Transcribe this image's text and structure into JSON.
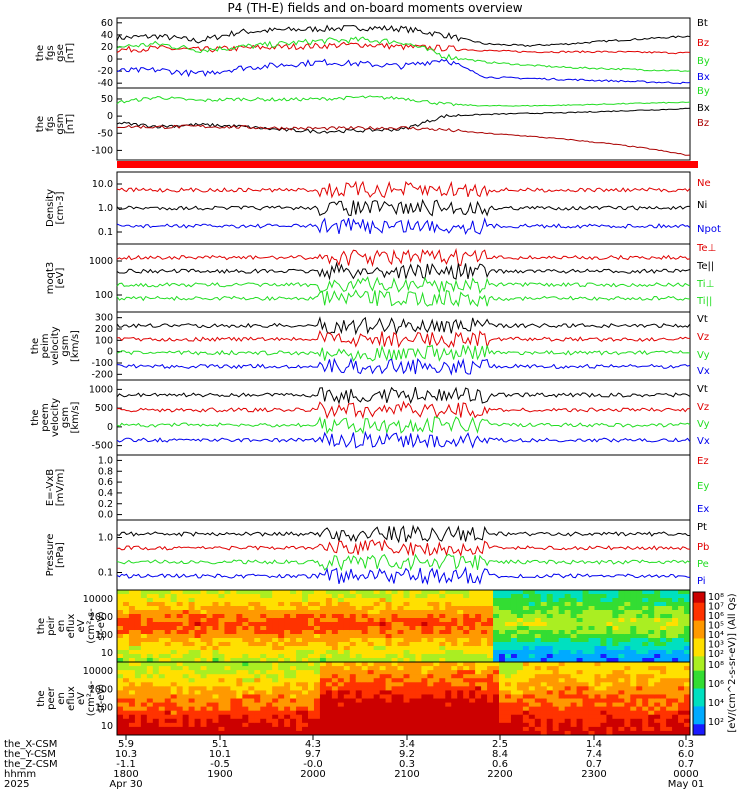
{
  "title": "P4 (TH-E) fields and on-board moments overview",
  "colors": {
    "black": "#000000",
    "red": "#e00000",
    "green": "#22dd22",
    "blue": "#0000ee",
    "darkred": "#aa0000"
  },
  "chart_data": [
    {
      "type": "line",
      "ylabel": [
        "the",
        "fgs",
        "gse",
        "[nT]"
      ],
      "yticks": [
        60,
        40,
        20,
        0,
        -20,
        -40
      ],
      "ylim": [
        -48,
        68
      ],
      "series": [
        {
          "name": "Bt",
          "color": "#000000",
          "values": [
            35,
            38,
            30,
            45,
            48,
            50,
            52,
            50,
            40,
            25,
            22,
            25,
            30,
            34,
            38
          ]
        },
        {
          "name": "Bz",
          "color": "#e00000",
          "values": [
            15,
            18,
            15,
            18,
            20,
            22,
            24,
            20,
            18,
            14,
            12,
            12,
            12,
            11,
            10
          ]
        },
        {
          "name": "By",
          "color": "#22dd22",
          "values": [
            20,
            25,
            15,
            20,
            25,
            30,
            32,
            28,
            5,
            -5,
            -10,
            -14,
            -16,
            -18,
            -20
          ]
        },
        {
          "name": "Bx",
          "color": "#0000ee",
          "values": [
            -20,
            -18,
            -25,
            -15,
            -10,
            -5,
            -8,
            -12,
            0,
            -30,
            -32,
            -34,
            -36,
            -38,
            -40
          ]
        }
      ]
    },
    {
      "type": "line",
      "ylabel": [
        "the",
        "fgs",
        "gsm",
        "[nT]"
      ],
      "yticks": [
        50,
        0,
        -50,
        -100
      ],
      "ylim": [
        -128,
        82
      ],
      "series": [
        {
          "name": "By",
          "color": "#22dd22",
          "values": [
            40,
            55,
            45,
            50,
            48,
            50,
            55,
            52,
            35,
            30,
            30,
            32,
            35,
            38,
            40
          ]
        },
        {
          "name": "Bx",
          "color": "#000000",
          "values": [
            -20,
            -30,
            -25,
            -30,
            -40,
            -45,
            -42,
            -38,
            0,
            5,
            8,
            10,
            14,
            18,
            22
          ]
        },
        {
          "name": "Bz",
          "color": "#aa0000",
          "values": [
            -30,
            -32,
            -30,
            -32,
            -35,
            -36,
            -35,
            -34,
            -40,
            -50,
            -58,
            -68,
            -80,
            -95,
            -115
          ]
        }
      ]
    },
    {
      "type": "line",
      "ylabel": [
        "Density",
        "[cm-3]"
      ],
      "ytick_labels": [
        "10.0",
        "1.0",
        "0.1"
      ],
      "ylog": true,
      "series": [
        {
          "name": "Ne",
          "color": "#e00000"
        },
        {
          "name": "Ni",
          "color": "#000000"
        },
        {
          "name": "Npot",
          "color": "#0000ee"
        }
      ]
    },
    {
      "type": "line",
      "ylabel": [
        "moqt3",
        "[eV]"
      ],
      "ytick_labels": [
        "1000",
        "100"
      ],
      "ylog": true,
      "series": [
        {
          "name": "Te⊥",
          "color": "#e00000"
        },
        {
          "name": "Te||",
          "color": "#000000"
        },
        {
          "name": "Ti⊥",
          "color": "#22dd22"
        },
        {
          "name": "Ti||",
          "color": "#22dd22"
        }
      ]
    },
    {
      "type": "line",
      "ylabel": [
        "the",
        "peim",
        "velocity",
        "gsm",
        "[km/s]"
      ],
      "yticks": [
        300,
        200,
        100,
        0,
        -100,
        -200
      ],
      "series": [
        {
          "name": "Vt",
          "color": "#000000"
        },
        {
          "name": "Vz",
          "color": "#e00000"
        },
        {
          "name": "Vy",
          "color": "#22dd22"
        },
        {
          "name": "Vx",
          "color": "#0000ee"
        }
      ]
    },
    {
      "type": "line",
      "ylabel": [
        "the",
        "peem",
        "velocity",
        "gsm",
        "[km/s]"
      ],
      "yticks": [
        1000,
        500,
        0,
        -500
      ],
      "series": [
        {
          "name": "Vt",
          "color": "#000000"
        },
        {
          "name": "Vz",
          "color": "#e00000"
        },
        {
          "name": "Vy",
          "color": "#22dd22"
        },
        {
          "name": "Vx",
          "color": "#0000ee"
        }
      ]
    },
    {
      "type": "line",
      "ylabel": [
        "E=-VxB",
        "[mV/m]"
      ],
      "ytick_labels": [
        "1.0",
        "0.8",
        "0.6",
        "0.4",
        "0.2",
        "0.0"
      ],
      "series": [
        {
          "name": "Ez",
          "color": "#e00000"
        },
        {
          "name": "Ey",
          "color": "#22dd22"
        },
        {
          "name": "Ex",
          "color": "#0000ee"
        }
      ]
    },
    {
      "type": "line",
      "ylabel": [
        "Pressure",
        "[nPa]"
      ],
      "ytick_labels": [
        "1.0",
        "0.1"
      ],
      "ylog": true,
      "series": [
        {
          "name": "Pt",
          "color": "#000000"
        },
        {
          "name": "Pb",
          "color": "#e00000"
        },
        {
          "name": "Pe",
          "color": "#22dd22"
        },
        {
          "name": "Pi",
          "color": "#0000ee"
        }
      ]
    },
    {
      "type": "heatmap",
      "ylabel": [
        "the",
        "peir",
        "en",
        "eflux",
        "eV",
        "(cm²-s-",
        "sr-eV)"
      ],
      "ytick_labels": [
        "10000",
        "1000",
        "100",
        "10"
      ]
    },
    {
      "type": "heatmap",
      "ylabel": [
        "the",
        "peer",
        "en",
        "eflux",
        "eV",
        "(cm²-s-",
        "sr-eV)"
      ],
      "ytick_labels": [
        "10000",
        "1000",
        "100",
        "10"
      ]
    }
  ],
  "colorbar": {
    "label": "[eV/(cm^2-s-sr-eV)] (All Qs)",
    "labels_top": [
      "10⁸",
      "10⁷",
      "10⁶",
      "10⁵",
      "10⁴",
      "10³",
      "10²"
    ],
    "labels_bottom": [
      "10⁸",
      "10⁶",
      "10⁴",
      "10²"
    ]
  },
  "xaxis": {
    "rows": [
      {
        "label": "the_X-CSM",
        "values": [
          "5.9",
          "5.1",
          "4.3",
          "3.4",
          "2.5",
          "1.4",
          "0.3"
        ]
      },
      {
        "label": "the_Y-CSM",
        "values": [
          "10.3",
          "10.1",
          "9.7",
          "9.2",
          "8.4",
          "7.4",
          "6.0"
        ]
      },
      {
        "label": "the_Z-CSM",
        "values": [
          "-1.1",
          "-0.5",
          "-0.0",
          "0.3",
          "0.6",
          "0.7",
          "0.7"
        ]
      },
      {
        "label": "hhmm",
        "values": [
          "1800",
          "1900",
          "2000",
          "2100",
          "2200",
          "2300",
          "0000"
        ]
      },
      {
        "label": "2025",
        "values": [
          "Apr 30",
          "",
          "",
          "",
          "",
          "",
          "May 01"
        ]
      }
    ]
  }
}
